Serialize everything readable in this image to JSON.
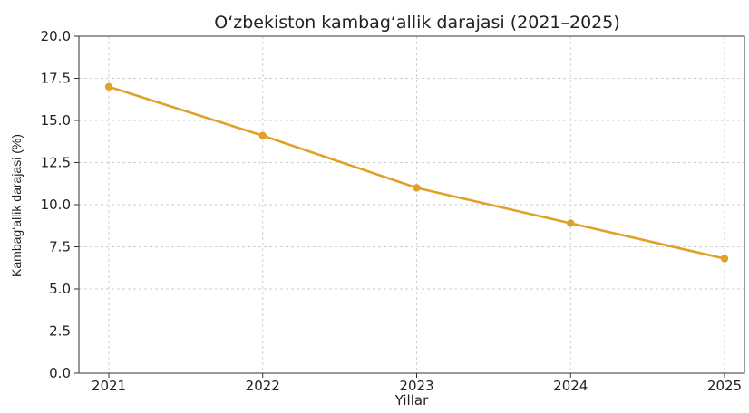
{
  "chart_data": {
    "type": "line",
    "title": "O‘zbekiston kambag‘allik darajasi (2021–2025)",
    "xlabel": "Yillar",
    "ylabel": "Kambag‘allik darajasi (%)",
    "x": [
      2021,
      2022,
      2023,
      2024,
      2025
    ],
    "x_tick_labels": [
      "2021",
      "2022",
      "2023",
      "2024",
      "2025"
    ],
    "y_tick_labels": [
      "0.0",
      "2.5",
      "5.0",
      "7.5",
      "10.0",
      "12.5",
      "15.0",
      "17.5",
      "20.0"
    ],
    "ylim": [
      0,
      20
    ],
    "series": [
      {
        "values": [
          17.0,
          14.1,
          11.0,
          8.9,
          6.8
        ],
        "color": "#E0A12A"
      }
    ],
    "grid": true,
    "legend": false
  }
}
